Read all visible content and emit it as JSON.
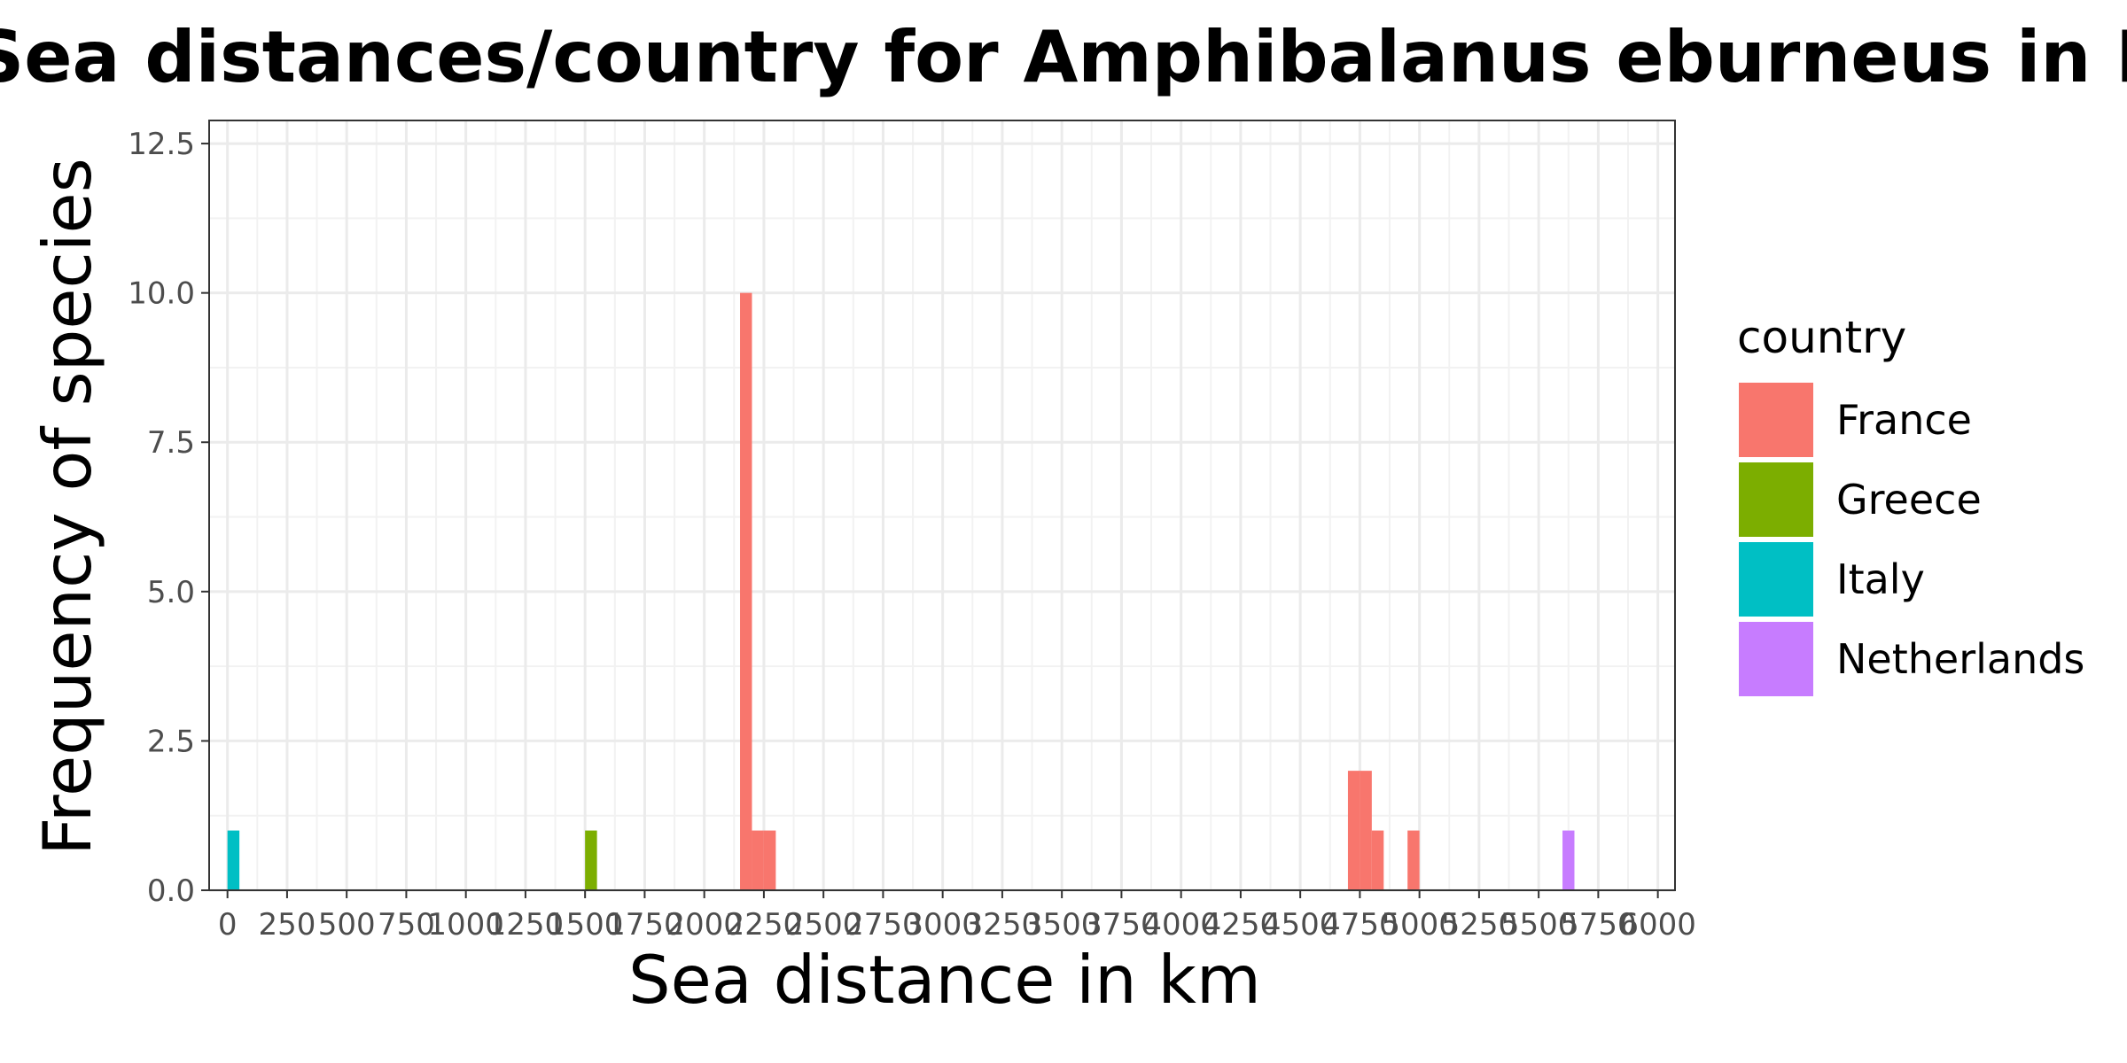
{
  "chart_data": {
    "type": "bar",
    "title": "Histogram of Sea distances/country for Amphibalanus eburneus in Ravenna",
    "xlabel": "Sea distance in km",
    "ylabel": "Frequency of species",
    "xlim": [
      0,
      6000
    ],
    "ylim": [
      0,
      12.5
    ],
    "bin_width": 50,
    "x_ticks": [
      "0",
      "250",
      "500",
      "750",
      "1000",
      "1250",
      "1500",
      "1750",
      "2000",
      "2250",
      "2500",
      "2750",
      "3000",
      "3250",
      "3500",
      "3750",
      "4000",
      "4250",
      "4500",
      "4750",
      "5000",
      "5250",
      "5500",
      "5750",
      "6000"
    ],
    "y_ticks": [
      "0.0",
      "2.5",
      "5.0",
      "7.5",
      "10.0",
      "12.5"
    ],
    "grid": true,
    "legend": {
      "title": "country",
      "placement": "right"
    },
    "series": [
      {
        "name": "France",
        "color": "#F8766D",
        "bars": [
          {
            "x0": 2150,
            "x1": 2200,
            "value": 10
          },
          {
            "x0": 2200,
            "x1": 2250,
            "value": 1
          },
          {
            "x0": 2250,
            "x1": 2300,
            "value": 1
          },
          {
            "x0": 4700,
            "x1": 4750,
            "value": 2
          },
          {
            "x0": 4750,
            "x1": 4800,
            "value": 2
          },
          {
            "x0": 4800,
            "x1": 4850,
            "value": 1
          },
          {
            "x0": 4950,
            "x1": 5000,
            "value": 1
          }
        ]
      },
      {
        "name": "Greece",
        "color": "#7CAE00",
        "bars": [
          {
            "x0": 1500,
            "x1": 1550,
            "value": 1
          }
        ]
      },
      {
        "name": "Italy",
        "color": "#00BFC4",
        "bars": [
          {
            "x0": 0,
            "x1": 50,
            "value": 1
          }
        ]
      },
      {
        "name": "Netherlands",
        "color": "#C77CFF",
        "bars": [
          {
            "x0": 5600,
            "x1": 5650,
            "value": 1
          }
        ]
      }
    ]
  }
}
